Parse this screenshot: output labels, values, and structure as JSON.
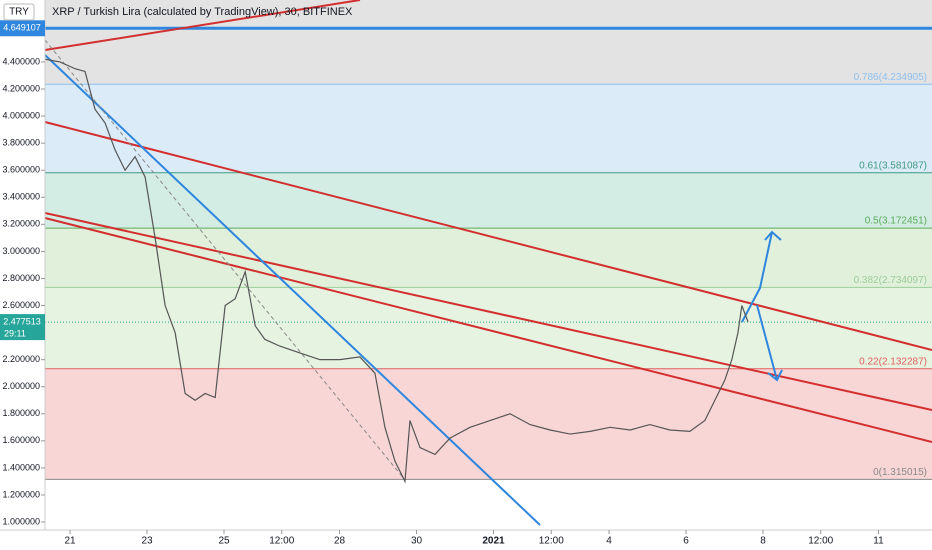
{
  "chart_data": {
    "type": "line",
    "title": "XRP / Turkish Lira (calculated by TradingView), 30, BITFINEX",
    "currency": "TRY",
    "color": "#555555",
    "x": [
      -0.65,
      -0.26,
      0.13,
      0.39,
      0.65,
      0.91,
      1.17,
      1.43,
      1.69,
      1.95,
      2.21,
      2.47,
      2.73,
      2.99,
      3.25,
      3.51,
      3.77,
      4.03,
      4.29,
      4.55,
      4.81,
      5.06,
      5.45,
      5.97,
      6.49,
      7.01,
      7.53,
      7.92,
      8.18,
      8.44,
      8.7,
      8.83,
      9.09,
      9.48,
      9.87,
      10.39,
      10.91,
      11.43,
      11.95,
      12.47,
      12.99,
      13.51,
      14.03,
      14.55,
      15.06,
      15.58,
      16.1,
      16.49,
      16.75,
      17.01,
      17.19,
      17.35,
      17.45,
      17.61
    ],
    "values": [
      4.42,
      4.4,
      4.35,
      4.33,
      4.05,
      3.95,
      3.75,
      3.6,
      3.7,
      3.55,
      3.1,
      2.6,
      2.4,
      1.95,
      1.9,
      1.95,
      1.92,
      2.6,
      2.65,
      2.85,
      2.45,
      2.35,
      2.3,
      2.25,
      2.2,
      2.2,
      2.22,
      2.1,
      1.7,
      1.45,
      1.3,
      1.75,
      1.55,
      1.5,
      1.62,
      1.7,
      1.75,
      1.8,
      1.72,
      1.68,
      1.65,
      1.67,
      1.7,
      1.68,
      1.72,
      1.68,
      1.67,
      1.75,
      1.9,
      2.05,
      2.2,
      2.4,
      2.6,
      2.48
    ],
    "xlim": [
      -0.65,
      22.39
    ],
    "xticks": [
      {
        "value": 0,
        "label": "21"
      },
      {
        "value": 2,
        "label": "23"
      },
      {
        "value": 4,
        "label": "25"
      },
      {
        "value": 5.5,
        "label": "12:00"
      },
      {
        "value": 7,
        "label": "28"
      },
      {
        "value": 9,
        "label": "30"
      },
      {
        "value": 11,
        "label": "2021"
      },
      {
        "value": 12.5,
        "label": "12:00"
      },
      {
        "value": 14,
        "label": "4"
      },
      {
        "value": 16,
        "label": "6"
      },
      {
        "value": 18,
        "label": "8"
      },
      {
        "value": 19.5,
        "label": "12:00"
      },
      {
        "value": 21,
        "label": "11"
      }
    ],
    "ylim": [
      0.941,
      4.858
    ],
    "yticks": [
      {
        "value": 1.0,
        "label": "1.000000"
      },
      {
        "value": 1.2,
        "label": "1.200000"
      },
      {
        "value": 1.4,
        "label": "1.400000"
      },
      {
        "value": 1.6,
        "label": "1.600000"
      },
      {
        "value": 1.8,
        "label": "1.800000"
      },
      {
        "value": 2.0,
        "label": "2.000000"
      },
      {
        "value": 2.2,
        "label": "2.200000"
      },
      {
        "value": 2.6,
        "label": "2.600000"
      },
      {
        "value": 2.8,
        "label": "2.800000"
      },
      {
        "value": 3.0,
        "label": "3.000000"
      },
      {
        "value": 3.2,
        "label": "3.200000"
      },
      {
        "value": 3.4,
        "label": "3.400000"
      },
      {
        "value": 3.6,
        "label": "3.600000"
      },
      {
        "value": 3.8,
        "label": "3.800000"
      },
      {
        "value": 4.0,
        "label": "4.000000"
      },
      {
        "value": 4.2,
        "label": "4.200000"
      },
      {
        "value": 4.4,
        "label": "4.400000"
      }
    ],
    "fib_levels": [
      {
        "value": 4.234905,
        "label": "0.786(4.234905)",
        "color": "#8fc0ee",
        "fill": "#dcebf8"
      },
      {
        "value": 3.581087,
        "label": "0.61(3.581087)",
        "color": "#3f9a80",
        "fill": "#d3ece4"
      },
      {
        "value": 3.172451,
        "label": "0.5(3.172451)",
        "color": "#5aac5a",
        "fill": "#e0f0da"
      },
      {
        "value": 2.734097,
        "label": "0.382(2.734097)",
        "color": "#9ccc9c",
        "fill": "#e6f3e1"
      },
      {
        "value": 2.132287,
        "label": "0.22(2.132287)",
        "color": "#e06060",
        "fill": "#f9d6d6"
      },
      {
        "value": 1.315015,
        "label": "0(1.315015)",
        "color": "#888888",
        "fill": "#ffffff"
      }
    ],
    "top_fill": "#e3e3e3",
    "level_line": {
      "value": 4.649107,
      "label": "4.649107",
      "color": "#2e86de"
    },
    "last_price": {
      "value": 2.477513,
      "label": "2.477513",
      "color": "#26a69a",
      "countdown": "29:11"
    }
  }
}
